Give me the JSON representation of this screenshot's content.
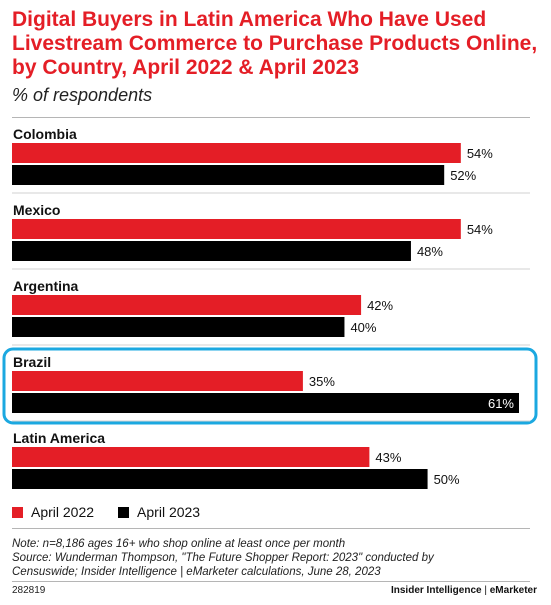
{
  "header": {
    "title": "Digital Buyers in Latin America Who Have Used Livestream Commerce to Purchase Products Online, by Country, April 2022 & April 2023",
    "subtitle": "% of respondents"
  },
  "colors": {
    "april2022": "#e41e26",
    "april2023": "#000000",
    "title": "#e41e26",
    "highlight": "#1ba8e0"
  },
  "chart_data": {
    "type": "bar",
    "orientation": "horizontal",
    "categories": [
      "Colombia",
      "Mexico",
      "Argentina",
      "Brazil",
      "Latin America"
    ],
    "series": [
      {
        "name": "April 2022",
        "values": [
          54,
          54,
          42,
          35,
          43
        ]
      },
      {
        "name": "April 2023",
        "values": [
          52,
          48,
          40,
          61,
          50
        ]
      }
    ],
    "value_suffix": "%",
    "highlighted_category": "Brazil",
    "xlim": [
      0,
      61
    ],
    "legend_position": "bottom-left"
  },
  "legend": {
    "items": [
      "April 2022",
      "April 2023"
    ]
  },
  "footer": {
    "note_line1": "Note: n=8,186 ages 16+ who shop online at least once per month",
    "note_line2": "Source: Wunderman Thompson, \"The Future Shopper Report: 2023\" conducted by",
    "note_line3": "Censuswide; Insider Intelligence | eMarketer calculations, June 28, 2023",
    "chart_id": "282819",
    "brand_left": "Insider Intelligence",
    "brand_sep": " | ",
    "brand_right": "eMarketer"
  }
}
